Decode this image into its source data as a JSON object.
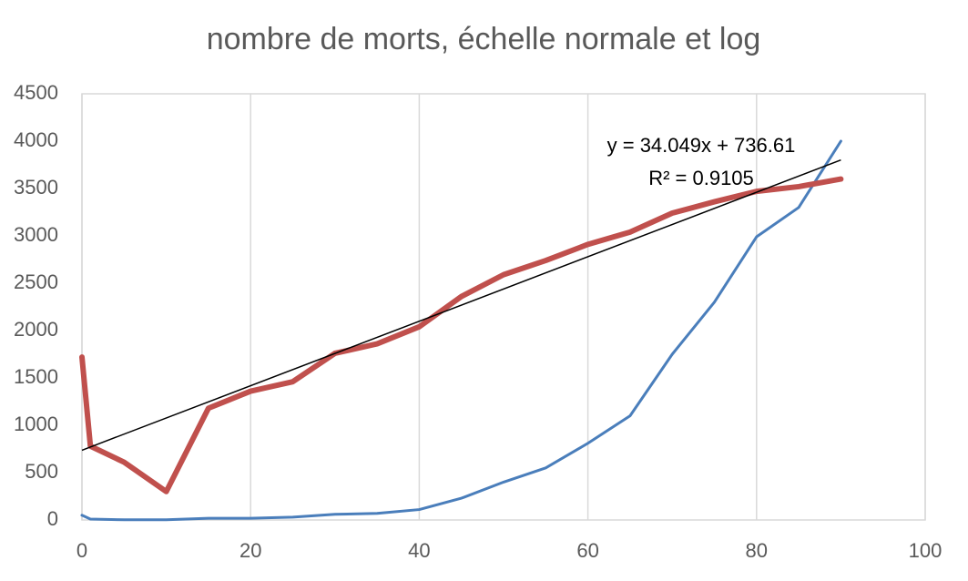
{
  "chart_data": {
    "type": "line",
    "title": "nombre de morts, échelle normale et log",
    "x": [
      0,
      1,
      5,
      10,
      15,
      20,
      25,
      30,
      35,
      40,
      45,
      50,
      55,
      60,
      65,
      70,
      75,
      80,
      85,
      90
    ],
    "series": [
      {
        "color": "#4a7ebb",
        "width": 3,
        "values": [
          50,
          10,
          2,
          2,
          18,
          18,
          30,
          60,
          70,
          110,
          230,
          400,
          550,
          810,
          1100,
          1750,
          2300,
          2990,
          3300,
          4000
        ]
      },
      {
        "color": "#c0504d",
        "width": 6,
        "values": [
          1720,
          780,
          610,
          300,
          1180,
          1360,
          1460,
          1760,
          1860,
          2040,
          2360,
          2590,
          2740,
          2910,
          3040,
          3240,
          3360,
          3470,
          3520,
          3600
        ]
      }
    ],
    "trendline": {
      "slope": 34.049,
      "intercept": 736.61,
      "color": "#000000"
    },
    "annotations": [
      "y = 34.049x + 736.61",
      "R² = 0.9105"
    ],
    "xlim": [
      0,
      100
    ],
    "xticks": [
      0,
      20,
      40,
      60,
      80,
      100
    ],
    "ylim": [
      0,
      4500
    ],
    "yticks": [
      0,
      500,
      1000,
      1500,
      2000,
      2500,
      3000,
      3500,
      4000,
      4500
    ],
    "grid": "x"
  }
}
